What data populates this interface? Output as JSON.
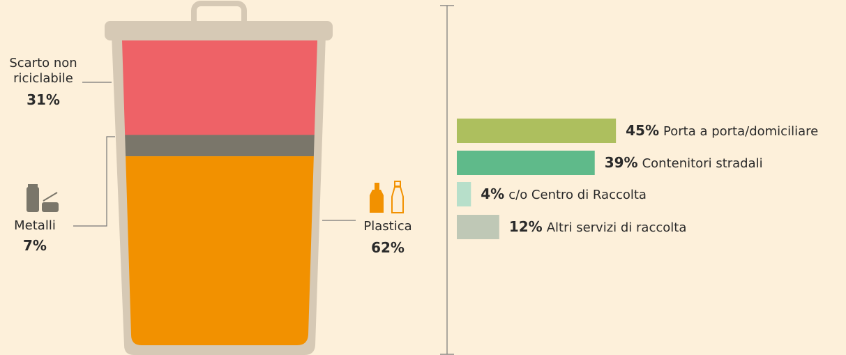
{
  "chart_data": [
    {
      "type": "bin",
      "categories": [
        "Scarto non riciclabile",
        "Metalli",
        "Plastica"
      ],
      "values": [
        31,
        7,
        62
      ],
      "value_labels": [
        "31%",
        "7%",
        "62%"
      ],
      "colors": [
        "#ee6267",
        "#7a766a",
        "#f29100"
      ]
    },
    {
      "type": "bar",
      "categories": [
        "Porta a porta/domiciliare",
        "Contenitori stradali",
        "c/o Centro di Raccolta",
        "Altri servizi di raccolta"
      ],
      "values": [
        45,
        39,
        4,
        12
      ],
      "value_labels": [
        "45%",
        "39%",
        "4%",
        "12%"
      ],
      "colors": [
        "#adbf5e",
        "#5fba8a",
        "#b7dfca",
        "#bfc8b6"
      ]
    }
  ]
}
